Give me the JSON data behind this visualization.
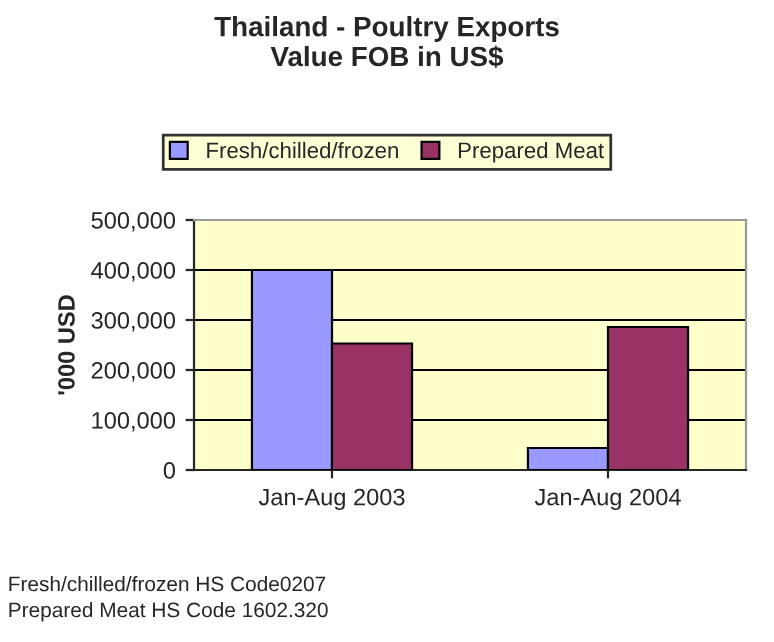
{
  "chart_data": {
    "type": "bar",
    "title": "Thailand - Poultry Exports\nValue FOB in US$",
    "ylabel": "'000 USD",
    "categories": [
      "Jan-Aug 2003",
      "Jan-Aug 2004"
    ],
    "series": [
      {
        "name": "Fresh/chilled/frozen",
        "color": "#9999ff",
        "values": [
          400000,
          44000
        ]
      },
      {
        "name": "Prepared Meat",
        "color": "#993366",
        "values": [
          253000,
          286000
        ]
      }
    ],
    "ylim": [
      0,
      500000
    ],
    "yticks": [
      {
        "value": 0,
        "label": "0"
      },
      {
        "value": 100000,
        "label": "100,000"
      },
      {
        "value": 200000,
        "label": "200,000"
      },
      {
        "value": 300000,
        "label": "300,000"
      },
      {
        "value": 400000,
        "label": "400,000"
      },
      {
        "value": 500000,
        "label": "500,000"
      }
    ],
    "grid": "y",
    "legend": "top",
    "annotations": [
      "Fresh/chilled/frozen HS Code0207",
      "Prepared Meat HS Code 1602.320"
    ]
  }
}
